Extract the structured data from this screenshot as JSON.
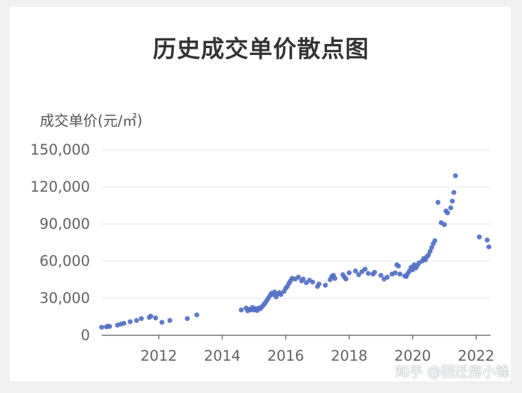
{
  "chart_data": {
    "type": "scatter",
    "title": "历史成交单价散点图",
    "ylabel": "成交单价(元/㎡)",
    "xlabel": "",
    "xlim": [
      2010.2,
      2022.45
    ],
    "ylim": [
      0,
      150000
    ],
    "x_ticks": [
      "2012",
      "2014",
      "2016",
      "2018",
      "2020",
      "2022"
    ],
    "y_ticks": [
      "0",
      "30,000",
      "60,000",
      "90,000",
      "120,000",
      "150,000"
    ],
    "grid": true,
    "color": "#5470c6",
    "points": [
      [
        2010.2,
        6500
      ],
      [
        2010.35,
        6800
      ],
      [
        2010.4,
        7400
      ],
      [
        2010.45,
        7100
      ],
      [
        2010.7,
        8200
      ],
      [
        2010.8,
        9000
      ],
      [
        2010.9,
        9700
      ],
      [
        2011.1,
        11000
      ],
      [
        2011.3,
        12000
      ],
      [
        2011.45,
        13500
      ],
      [
        2011.7,
        14500
      ],
      [
        2011.75,
        15500
      ],
      [
        2011.9,
        14000
      ],
      [
        2012.1,
        10500
      ],
      [
        2012.35,
        12000
      ],
      [
        2012.9,
        13500
      ],
      [
        2013.2,
        16500
      ],
      [
        2014.6,
        20500
      ],
      [
        2014.75,
        22000
      ],
      [
        2014.8,
        19800
      ],
      [
        2014.85,
        21000
      ],
      [
        2014.9,
        20500
      ],
      [
        2014.95,
        22500
      ],
      [
        2015.0,
        20500
      ],
      [
        2015.05,
        21500
      ],
      [
        2015.1,
        20000
      ],
      [
        2015.15,
        22000
      ],
      [
        2015.2,
        21500
      ],
      [
        2015.25,
        23000
      ],
      [
        2015.3,
        24500
      ],
      [
        2015.35,
        26000
      ],
      [
        2015.4,
        28000
      ],
      [
        2015.45,
        30000
      ],
      [
        2015.5,
        32000
      ],
      [
        2015.55,
        34000
      ],
      [
        2015.6,
        33000
      ],
      [
        2015.65,
        35000
      ],
      [
        2015.7,
        31000
      ],
      [
        2015.75,
        33500
      ],
      [
        2015.8,
        34500
      ],
      [
        2015.85,
        33000
      ],
      [
        2015.95,
        35500
      ],
      [
        2016.0,
        38000
      ],
      [
        2016.05,
        39500
      ],
      [
        2016.1,
        42000
      ],
      [
        2016.15,
        44000
      ],
      [
        2016.2,
        46000
      ],
      [
        2016.3,
        45500
      ],
      [
        2016.4,
        47000
      ],
      [
        2016.5,
        44000
      ],
      [
        2016.55,
        45500
      ],
      [
        2016.65,
        42500
      ],
      [
        2016.75,
        44500
      ],
      [
        2016.85,
        43000
      ],
      [
        2017.0,
        39500
      ],
      [
        2017.05,
        41500
      ],
      [
        2017.25,
        40500
      ],
      [
        2017.4,
        45000
      ],
      [
        2017.45,
        47500
      ],
      [
        2017.5,
        48500
      ],
      [
        2017.55,
        46000
      ],
      [
        2017.8,
        49000
      ],
      [
        2017.85,
        47000
      ],
      [
        2017.9,
        45500
      ],
      [
        2018.0,
        50500
      ],
      [
        2018.2,
        52000
      ],
      [
        2018.3,
        49000
      ],
      [
        2018.4,
        51500
      ],
      [
        2018.5,
        53500
      ],
      [
        2018.6,
        50000
      ],
      [
        2018.75,
        49500
      ],
      [
        2018.8,
        51000
      ],
      [
        2019.0,
        48500
      ],
      [
        2019.1,
        45500
      ],
      [
        2019.2,
        47000
      ],
      [
        2019.35,
        49500
      ],
      [
        2019.45,
        50500
      ],
      [
        2019.5,
        57000
      ],
      [
        2019.55,
        56000
      ],
      [
        2019.6,
        49500
      ],
      [
        2019.75,
        48000
      ],
      [
        2019.8,
        47500
      ],
      [
        2019.85,
        50000
      ],
      [
        2019.9,
        52000
      ],
      [
        2019.95,
        55000
      ],
      [
        2020.0,
        53000
      ],
      [
        2020.05,
        57000
      ],
      [
        2020.1,
        54500
      ],
      [
        2020.15,
        56500
      ],
      [
        2020.2,
        58500
      ],
      [
        2020.3,
        60000
      ],
      [
        2020.35,
        62000
      ],
      [
        2020.4,
        61000
      ],
      [
        2020.45,
        63500
      ],
      [
        2020.5,
        65000
      ],
      [
        2020.55,
        68000
      ],
      [
        2020.6,
        71000
      ],
      [
        2020.65,
        74000
      ],
      [
        2020.7,
        76500
      ],
      [
        2020.8,
        107500
      ],
      [
        2020.9,
        91000
      ],
      [
        2021.0,
        89500
      ],
      [
        2021.05,
        100500
      ],
      [
        2021.1,
        99000
      ],
      [
        2021.2,
        103000
      ],
      [
        2021.25,
        108500
      ],
      [
        2021.3,
        115500
      ],
      [
        2021.35,
        129000
      ],
      [
        2022.1,
        79500
      ],
      [
        2022.35,
        77000
      ],
      [
        2022.4,
        71500
      ]
    ]
  },
  "watermark": "知乎 @回迁房小锋"
}
